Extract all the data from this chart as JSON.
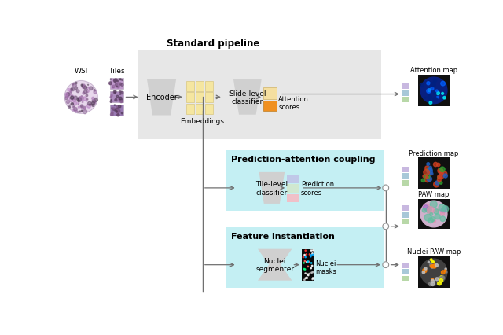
{
  "title": "Standard pipeline",
  "title2": "Prediction-attention coupling",
  "title3": "Feature instantiation",
  "label_wsi": "WSI",
  "label_tiles": "Tiles",
  "label_encoder": "Encoder",
  "label_embeddings": "Embeddings",
  "label_slide_classifier": "Slide-level\nclassifier",
  "label_attention": "Attention\nscores",
  "label_tile_classifier": "Tile-level\nclassifier",
  "label_prediction": "Prediction\nscores",
  "label_nuclei_segmenter": "Nuclei\nsegmenter",
  "label_nuclei_masks": "Nuclei\nmasks",
  "label_attention_map": "Attention map",
  "label_prediction_map": "Prediction map",
  "label_paw_map": "PAW map",
  "label_nuclei_paw_map": "Nuclei PAW map",
  "bg_color": "#ffffff",
  "gray_box_color": "#d8d8d8",
  "cyan_box_color": "#b0eaf0",
  "encoder_color": "#d0d0d0",
  "embeddings_color": "#f5e6a0",
  "classifier_color": "#d0d0d0",
  "attention_bar_top": "#f5dfa0",
  "attention_bar_bot": "#f09020",
  "pred_bar_1": "#c0c8e8",
  "pred_bar_2": "#d0e8d0",
  "pred_bar_3": "#f0c0c8",
  "arrow_color": "#707070",
  "legend_purple": "#c8b8e0",
  "legend_blue": "#a8c8d8",
  "legend_green": "#b8d8a8"
}
